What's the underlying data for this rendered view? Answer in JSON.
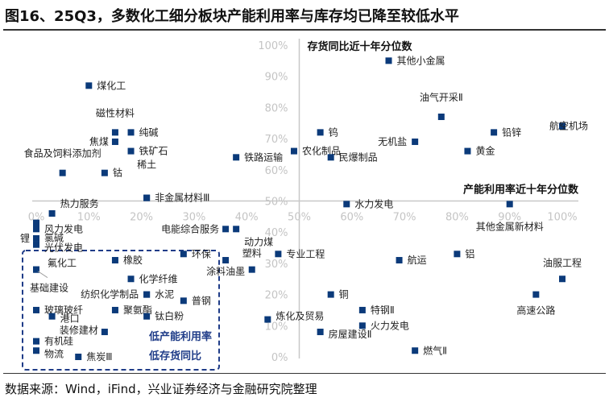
{
  "title": "图16、25Q3，多数化工细分板块产能利用率与库存均已降至较低水平",
  "source": "数据来源：Wind，iFind，兴业证券经济与金融研究院整理",
  "chart_data": {
    "type": "scatter",
    "xlabel": "产能利用率近十年分位数",
    "ylabel": "存货同比近十年分位数",
    "xlim": [
      0,
      100
    ],
    "ylim": [
      0,
      100
    ],
    "x_ticks": [
      "0%",
      "10%",
      "20%",
      "30%",
      "40%",
      "50%",
      "60%",
      "70%",
      "80%",
      "90%",
      "100%"
    ],
    "y_ticks": [
      "0%",
      "10%",
      "20%",
      "30%",
      "40%",
      "50%",
      "60%",
      "70%",
      "80%",
      "90%",
      "100%"
    ],
    "axes_cross": [
      50,
      50
    ],
    "grid": false,
    "marker_color": "#0b3a7a",
    "highlight_region": {
      "x": [
        0,
        35
      ],
      "y": [
        0,
        34
      ],
      "labels": [
        "低产能利用率",
        "低存货同比"
      ],
      "color": "#1f3c88"
    },
    "points": [
      {
        "name": "煤化工",
        "x": 10,
        "y": 87
      },
      {
        "name": "磁性材料",
        "x": 15,
        "y": 72
      },
      {
        "name": "纯碱",
        "x": 18,
        "y": 72
      },
      {
        "name": "焦煤",
        "x": 15,
        "y": 69
      },
      {
        "name": "铁矿石",
        "x": 18,
        "y": 66
      },
      {
        "name": "食品及饲料添加剂",
        "x": 5,
        "y": 59
      },
      {
        "name": "钴",
        "x": 13,
        "y": 59
      },
      {
        "name": "稀土",
        "x": 21,
        "y": 51
      },
      {
        "name": "非金属材料Ⅲ",
        "x": 21,
        "y": 51
      },
      {
        "name": "铁路运输",
        "x": 38,
        "y": 64
      },
      {
        "name": "农化制品",
        "x": 49,
        "y": 66
      },
      {
        "name": "钨",
        "x": 54,
        "y": 72
      },
      {
        "name": "民爆制品",
        "x": 56,
        "y": 64
      },
      {
        "name": "其他小金属",
        "x": 67,
        "y": 95
      },
      {
        "name": "油气开采Ⅱ",
        "x": 77,
        "y": 77
      },
      {
        "name": "无机盐",
        "x": 72,
        "y": 69
      },
      {
        "name": "铅锌",
        "x": 87,
        "y": 72
      },
      {
        "name": "黄金",
        "x": 82,
        "y": 66
      },
      {
        "name": "航空机场",
        "x": 100,
        "y": 74
      },
      {
        "name": "水力发电",
        "x": 59,
        "y": 49
      },
      {
        "name": "其他金属新材料",
        "x": 90,
        "y": 49
      },
      {
        "name": "热力服务",
        "x": 3,
        "y": 46
      },
      {
        "name": "风力发电",
        "x": 0,
        "y": 43
      },
      {
        "name": "氯碱",
        "x": 0,
        "y": 41
      },
      {
        "name": "锂",
        "x": 0,
        "y": 38
      },
      {
        "name": "光伏发电",
        "x": 0,
        "y": 36
      },
      {
        "name": "电能综合服务",
        "x": 36,
        "y": 41
      },
      {
        "name": "动力煤",
        "x": 38,
        "y": 41
      },
      {
        "name": "环保",
        "x": 28,
        "y": 33
      },
      {
        "name": "专业工程",
        "x": 46,
        "y": 33
      },
      {
        "name": "涂料油墨",
        "x": 36,
        "y": 31
      },
      {
        "name": "塑料",
        "x": 41,
        "y": 28
      },
      {
        "name": "氟化工",
        "x": 0,
        "y": 28
      },
      {
        "name": "基础建设",
        "x": 0,
        "y": 28
      },
      {
        "name": "橡胶",
        "x": 15,
        "y": 31
      },
      {
        "name": "化学纤维",
        "x": 18,
        "y": 25
      },
      {
        "name": "纺织化学制品",
        "x": 21,
        "y": 20
      },
      {
        "name": "水泥",
        "x": 21,
        "y": 20
      },
      {
        "name": "普钢",
        "x": 28,
        "y": 18
      },
      {
        "name": "玻璃玻纤",
        "x": 0,
        "y": 15
      },
      {
        "name": "聚氨酯",
        "x": 15,
        "y": 15
      },
      {
        "name": "港口",
        "x": 3,
        "y": 13
      },
      {
        "name": "钛白粉",
        "x": 21,
        "y": 13
      },
      {
        "name": "装修建材",
        "x": 13,
        "y": 8
      },
      {
        "name": "有机硅",
        "x": 0,
        "y": 5
      },
      {
        "name": "物流",
        "x": 0,
        "y": 2
      },
      {
        "name": "焦炭Ⅲ",
        "x": 8,
        "y": 0
      },
      {
        "name": "航运",
        "x": 69,
        "y": 31
      },
      {
        "name": "铝",
        "x": 80,
        "y": 33
      },
      {
        "name": "油服工程",
        "x": 100,
        "y": 25
      },
      {
        "name": "高速公路",
        "x": 95,
        "y": 20
      },
      {
        "name": "铜",
        "x": 56,
        "y": 20
      },
      {
        "name": "特钢Ⅱ",
        "x": 62,
        "y": 15
      },
      {
        "name": "炼化及贸易",
        "x": 44,
        "y": 12
      },
      {
        "name": "火力发电",
        "x": 62,
        "y": 10
      },
      {
        "name": "房屋建设Ⅱ",
        "x": 54,
        "y": 8
      },
      {
        "name": "燃气Ⅱ",
        "x": 72,
        "y": 2
      }
    ]
  }
}
